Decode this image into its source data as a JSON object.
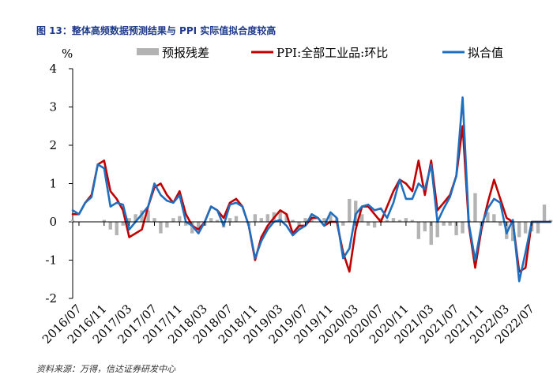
{
  "figure": {
    "title": "图 13：整体高频数据预测结果与 PPI 实际值拟合度较高",
    "source": "资料来源：万得，信达证券研发中心"
  },
  "chart_data": {
    "type": "line",
    "ylabel": "%",
    "ylim": [
      -2,
      4
    ],
    "yticks": [
      "4",
      "3",
      "2",
      "1",
      "0",
      "-1",
      "-2"
    ],
    "grid": false,
    "legend_position": "top",
    "x": [
      "2016/06",
      "2016/07",
      "2016/08",
      "2016/09",
      "2016/10",
      "2016/11",
      "2016/12",
      "2017/01",
      "2017/02",
      "2017/03",
      "2017/04",
      "2017/05",
      "2017/06",
      "2017/07",
      "2017/08",
      "2017/09",
      "2017/10",
      "2017/11",
      "2017/12",
      "2018/01",
      "2018/02",
      "2018/03",
      "2018/04",
      "2018/05",
      "2018/06",
      "2018/07",
      "2018/08",
      "2018/09",
      "2018/10",
      "2018/11",
      "2018/12",
      "2019/01",
      "2019/02",
      "2019/03",
      "2019/04",
      "2019/05",
      "2019/06",
      "2019/07",
      "2019/08",
      "2019/09",
      "2019/10",
      "2019/11",
      "2019/12",
      "2020/01",
      "2020/02",
      "2020/03",
      "2020/04",
      "2020/05",
      "2020/06",
      "2020/07",
      "2020/08",
      "2020/09",
      "2020/10",
      "2020/11",
      "2020/12",
      "2021/01",
      "2021/02",
      "2021/03",
      "2021/04",
      "2021/05",
      "2021/06",
      "2021/07",
      "2021/08",
      "2021/09",
      "2021/10",
      "2021/11",
      "2021/12",
      "2022/01",
      "2022/02",
      "2022/03",
      "2022/04",
      "2022/05",
      "2022/06",
      "2022/07",
      "2022/08",
      "2022/09",
      "2022/10"
    ],
    "xtick_labels": [
      "2016/07",
      "2016/11",
      "2017/03",
      "2017/07",
      "2017/11",
      "2018/03",
      "2018/07",
      "2018/11",
      "2019/03",
      "2019/07",
      "2019/11",
      "2020/03",
      "2020/07",
      "2020/11",
      "2021/03",
      "2021/07",
      "2021/11",
      "2022/03",
      "2022/07"
    ],
    "xtick_index": [
      1,
      5,
      9,
      13,
      17,
      21,
      25,
      29,
      33,
      37,
      41,
      45,
      49,
      53,
      57,
      61,
      65,
      69,
      73
    ],
    "series": [
      {
        "name": "预报残差",
        "kind": "bar",
        "color": "#b3b3b3",
        "values": [
          0.05,
          0.0,
          0.0,
          0.0,
          0.0,
          0.05,
          -0.2,
          -0.35,
          -0.1,
          0.1,
          0.2,
          0.3,
          0.3,
          0.1,
          -0.3,
          -0.15,
          0.1,
          0.15,
          -0.1,
          -0.3,
          -0.2,
          -0.1,
          0.1,
          0.05,
          -0.15,
          0.1,
          0.15,
          0.0,
          -0.1,
          0.2,
          0.1,
          0.2,
          0.25,
          0.3,
          0.2,
          0.05,
          -0.2,
          0.1,
          0.15,
          0.0,
          0.1,
          0.2,
          0.1,
          -0.1,
          0.6,
          0.55,
          0.2,
          -0.1,
          -0.15,
          0.1,
          0.05,
          0.1,
          0.05,
          0.1,
          0.05,
          -0.45,
          -0.25,
          -0.6,
          -0.4,
          -0.1,
          -0.1,
          -0.35,
          -0.3,
          0.05,
          0.75,
          -0.1,
          0.25,
          0.2,
          -0.1,
          -0.45,
          -0.5,
          -0.4,
          -0.3,
          -0.25,
          -0.3,
          0.45,
          0.05
        ]
      },
      {
        "name": "PPI:全部工业品:环比",
        "kind": "line",
        "color": "#c00000",
        "values": [
          0.2,
          0.2,
          0.5,
          0.7,
          1.5,
          1.6,
          0.8,
          0.6,
          0.3,
          -0.4,
          -0.3,
          -0.2,
          0.4,
          0.9,
          1.0,
          0.7,
          0.5,
          0.8,
          0.2,
          -0.1,
          -0.2,
          0.0,
          0.4,
          0.3,
          0.1,
          0.5,
          0.6,
          0.4,
          -0.1,
          -1.0,
          -0.4,
          -0.1,
          0.1,
          0.3,
          0.2,
          -0.3,
          -0.1,
          -0.1,
          0.1,
          0.1,
          -0.1,
          0.0,
          0.0,
          -0.8,
          -1.3,
          -0.2,
          0.4,
          0.4,
          0.2,
          0.0,
          0.4,
          0.8,
          1.1,
          1.0,
          0.8,
          1.6,
          0.7,
          1.6,
          0.3,
          0.5,
          0.7,
          1.2,
          2.5,
          -0.1,
          -1.2,
          -0.2,
          0.5,
          1.1,
          0.6,
          0.1,
          0.0,
          -1.3,
          -1.2,
          0.0,
          0.0,
          0.0,
          0.0
        ]
      },
      {
        "name": "拟合值",
        "kind": "line",
        "color": "#1f6fbf",
        "values": [
          0.3,
          0.2,
          0.5,
          0.65,
          1.5,
          1.4,
          0.4,
          0.5,
          0.45,
          -0.2,
          0.0,
          0.2,
          0.4,
          1.0,
          0.7,
          0.55,
          0.5,
          0.7,
          0.0,
          -0.1,
          -0.3,
          0.0,
          0.4,
          0.3,
          -0.1,
          0.45,
          0.5,
          0.4,
          -0.1,
          -0.95,
          -0.5,
          -0.2,
          0.0,
          0.05,
          -0.1,
          -0.35,
          -0.2,
          -0.1,
          0.2,
          0.1,
          -0.1,
          0.25,
          0.1,
          -0.95,
          -0.7,
          0.2,
          0.4,
          0.45,
          0.3,
          0.35,
          0.1,
          0.5,
          1.1,
          0.6,
          0.6,
          1.0,
          0.85,
          1.5,
          0.0,
          0.35,
          0.65,
          1.2,
          3.25,
          -0.05,
          -1.0,
          -0.1,
          0.35,
          0.6,
          0.5,
          -0.3,
          0.05,
          -1.55,
          -0.8,
          0.0,
          0.0,
          0.0,
          0.0
        ]
      }
    ]
  }
}
